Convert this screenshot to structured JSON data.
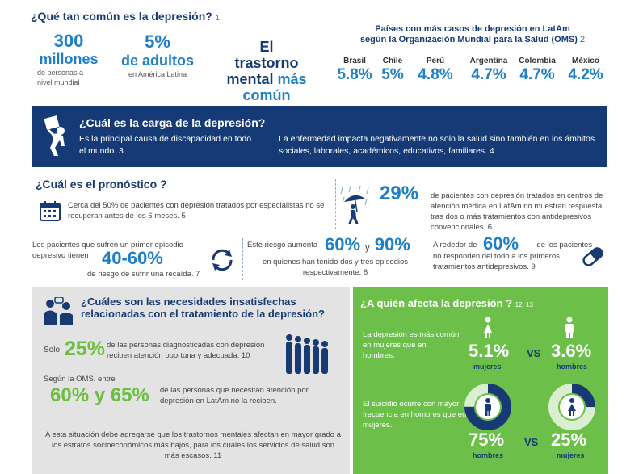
{
  "section1": {
    "title": "¿Qué tan común es la depresión?",
    "ref": "1",
    "stat1": {
      "number": "300",
      "unit": "millones",
      "sub1": "de personas a",
      "sub2": "nivel mundial"
    },
    "stat2": {
      "number": "5%",
      "unit": "de adultos",
      "sub": "en América Latina"
    },
    "stat3": {
      "line1": "El trastorno",
      "line2_a": "mental",
      "line2_b": "más",
      "line3": "común"
    },
    "countries_title_1": "Países con más casos de depresión en LatAm",
    "countries_title_2": "según la Organización Mundial para la Salud (OMS)",
    "countries_ref": "2",
    "countries": [
      {
        "name": "Brasil",
        "value": "5.8%"
      },
      {
        "name": "Chile",
        "value": "5%"
      },
      {
        "name": "Perú",
        "value": "4.8%"
      },
      {
        "name": "Argentina",
        "value": "4.7%"
      },
      {
        "name": "Colombia",
        "value": "4.7%"
      },
      {
        "name": "México",
        "value": "4.2%"
      }
    ]
  },
  "section2": {
    "title": "¿Cuál es la carga de la depresión?",
    "text1": "Es la principal causa de discapacidad en todo el mundo. 3",
    "text2": "La enfermedad impacta negativamente no solo la salud sino también en los ámbitos sociales, laborales, académicos, educativos, familiares. 4"
  },
  "section3": {
    "title": "¿Cuál es el pronóstico ?",
    "p1": "Cerca del 50% de pacientes con depresión tratados por especialistas no se recuperan antes de los 6 meses. 5",
    "p2_num": "29%",
    "p2_text": "de pacientes con depresión tratados en centros de atención médica en LatAm no muestran respuesta tras dos o más tratamientos con antidepresivos convencionales. 6",
    "p3_text1": "Los pacientes que sufren un primer episodio depresivo tienen",
    "p3_num": "40-60%",
    "p3_text2": "de riesgo de sufrir una recaída. 7",
    "p4_text1": "Este riesgo aumenta",
    "p4_num1": "60%",
    "p4_y": "y",
    "p4_num2": "90%",
    "p4_text2": "en quienes han tenido dos y tres episodios respectivamente. 8",
    "p5_text1": "Alrededor de",
    "p5_num": "60%",
    "p5_text1b": "de los pacientes",
    "p5_text2": "no responden del todo a los primeros tratamientos antidepresivos. 9"
  },
  "section4": {
    "title": "¿Cuáles son las necesidades insatisfechas relacionadas con el tratamiento de la depresión?",
    "q1_label": "Solo",
    "q1_num": "25%",
    "q1_text": "de las personas diagnosticadas con depresión reciben atención oportuna y adecuada. 10",
    "q2_label": "Según la OMS, entre",
    "q2_num": "60% y 65%",
    "q2_text": "de las personas que necesitan atención por depresión en LatAm no la reciben.",
    "q3_text": "A esta situación debe agregarse que los trastornos mentales afectan en mayor grado a los estratos socioeconómicos más bajos, para los cuales los servicios de salud son más escasos. 11"
  },
  "section5": {
    "title": "¿A quién afecta la depresión ?",
    "ref": "12, 13",
    "a1_text": "La depresión es más común en mujeres que en hombres.",
    "a1_female_value": "5.1%",
    "a1_female_label": "mujeres",
    "a1_male_value": "3.6%",
    "a1_male_label": "hombres",
    "vs": "VS",
    "a2_text": "El suicidio ocurre con mayor frecuencia en hombres que en mujeres.",
    "a2_male_value": "75%",
    "a2_male_label": "hombres",
    "a2_female_value": "25%",
    "a2_female_label": "mujeres",
    "a2_male_share": 0.75,
    "a2_female_share": 0.25
  },
  "colors": {
    "navy": "#163a76",
    "blue": "#1e7fc8",
    "green": "#6cc04a",
    "grey": "#e3e3e3"
  }
}
